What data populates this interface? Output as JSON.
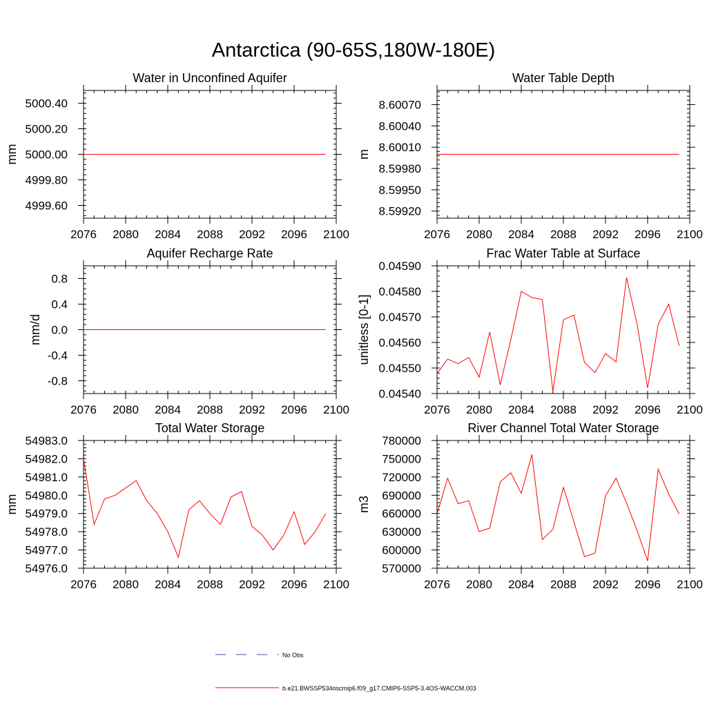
{
  "figure": {
    "title": "Antarctica (90-65S,180W-180E)",
    "legend": [
      {
        "label": "No Obs",
        "color": "#4a4aa8",
        "style": "dashed"
      },
      {
        "label": "b.e21.BWSSP534oscmip6.f09_g17.CMIP6-SSP5-3.4OS-WACCM.003",
        "color": "#ff0000",
        "style": "solid"
      }
    ]
  },
  "chart_data": [
    {
      "type": "line",
      "title": "Water in Unconfined Aquifer",
      "ylabel": "mm",
      "xlim": [
        2076,
        2100
      ],
      "ylim": [
        4999.5,
        5000.5
      ],
      "xticks": [
        "2076",
        "2080",
        "2084",
        "2088",
        "2092",
        "2096",
        "2100"
      ],
      "yticks": [
        "4999.60",
        "4999.80",
        "5000.00",
        "5000.20",
        "5000.40"
      ],
      "series": [
        {
          "color": "#ff0000",
          "x": [
            2076,
            2077,
            2078,
            2079,
            2080,
            2081,
            2082,
            2083,
            2084,
            2085,
            2086,
            2087,
            2088,
            2089,
            2090,
            2091,
            2092,
            2093,
            2094,
            2095,
            2096,
            2097,
            2098,
            2099
          ],
          "values": [
            5000,
            5000,
            5000,
            5000,
            5000,
            5000,
            5000,
            5000,
            5000,
            5000,
            5000,
            5000,
            5000,
            5000,
            5000,
            5000,
            5000,
            5000,
            5000,
            5000,
            5000,
            5000,
            5000,
            5000
          ]
        }
      ]
    },
    {
      "type": "line",
      "title": "Water Table Depth",
      "ylabel": "m",
      "xlim": [
        2076,
        2100
      ],
      "ylim": [
        8.5991,
        8.6009
      ],
      "xticks": [
        "2076",
        "2080",
        "2084",
        "2088",
        "2092",
        "2096",
        "2100"
      ],
      "yticks": [
        "8.59920",
        "8.59950",
        "8.59980",
        "8.60010",
        "8.60040",
        "8.60070"
      ],
      "series": [
        {
          "color": "#ff0000",
          "x": [
            2076,
            2077,
            2078,
            2079,
            2080,
            2081,
            2082,
            2083,
            2084,
            2085,
            2086,
            2087,
            2088,
            2089,
            2090,
            2091,
            2092,
            2093,
            2094,
            2095,
            2096,
            2097,
            2098,
            2099
          ],
          "values": [
            8.6,
            8.6,
            8.6,
            8.6,
            8.6,
            8.6,
            8.6,
            8.6,
            8.6,
            8.6,
            8.6,
            8.6,
            8.6,
            8.6,
            8.6,
            8.6,
            8.6,
            8.6,
            8.6,
            8.6,
            8.6,
            8.6,
            8.6,
            8.6
          ]
        }
      ]
    },
    {
      "type": "line",
      "title": "Aquifer Recharge Rate",
      "ylabel": "mm/d",
      "xlim": [
        2076,
        2100
      ],
      "ylim": [
        -1,
        1
      ],
      "xticks": [
        "2076",
        "2080",
        "2084",
        "2088",
        "2092",
        "2096",
        "2100"
      ],
      "yticks": [
        "-0.8",
        "-0.4",
        "0.0",
        "0.4",
        "0.8"
      ],
      "series": [
        {
          "color": "#ff0000",
          "x": [
            2076,
            2077,
            2078,
            2079,
            2080,
            2081,
            2082,
            2083,
            2084,
            2085,
            2086,
            2087,
            2088,
            2089,
            2090,
            2091,
            2092,
            2093,
            2094,
            2095,
            2096,
            2097,
            2098,
            2099
          ],
          "values": [
            0,
            0,
            0,
            0,
            0,
            0,
            0,
            0,
            0,
            0,
            0,
            0,
            0,
            0,
            0,
            0,
            0,
            0,
            0,
            0,
            0,
            0,
            0,
            0
          ]
        }
      ]
    },
    {
      "type": "line",
      "title": "Frac Water Table at Surface",
      "ylabel": "unitless [0-1]",
      "xlim": [
        2076,
        2100
      ],
      "ylim": [
        0.0454,
        0.0459
      ],
      "xticks": [
        "2076",
        "2080",
        "2084",
        "2088",
        "2092",
        "2096",
        "2100"
      ],
      "yticks": [
        "0.04540",
        "0.04550",
        "0.04560",
        "0.04570",
        "0.04580",
        "0.04590"
      ],
      "series": [
        {
          "color": "#ff0000",
          "x": [
            2076,
            2077,
            2078,
            2079,
            2080,
            2081,
            2082,
            2083,
            2084,
            2085,
            2086,
            2087,
            2088,
            2089,
            2090,
            2091,
            2092,
            2093,
            2094,
            2095,
            2096,
            2097,
            2098,
            2099
          ],
          "values": [
            0.045478,
            0.045535,
            0.045517,
            0.045541,
            0.045464,
            0.045641,
            0.045434,
            0.04561,
            0.0458,
            0.045776,
            0.045768,
            0.045409,
            0.045689,
            0.045707,
            0.045522,
            0.045482,
            0.045556,
            0.045524,
            0.045854,
            0.045671,
            0.045422,
            0.045671,
            0.04575,
            0.045587
          ]
        }
      ]
    },
    {
      "type": "line",
      "title": "Total Water Storage",
      "ylabel": "mm",
      "xlim": [
        2076,
        2100
      ],
      "ylim": [
        54976.0,
        54983.0
      ],
      "xticks": [
        "2076",
        "2080",
        "2084",
        "2088",
        "2092",
        "2096",
        "2100"
      ],
      "yticks": [
        "54976.0",
        "54977.0",
        "54978.0",
        "54979.0",
        "54980.0",
        "54981.0",
        "54982.0",
        "54983.0"
      ],
      "series": [
        {
          "color": "#ff0000",
          "x": [
            2076,
            2077,
            2078,
            2079,
            2080,
            2081,
            2082,
            2083,
            2084,
            2085,
            2086,
            2087,
            2088,
            2089,
            2090,
            2091,
            2092,
            2093,
            2094,
            2095,
            2096,
            2097,
            2098,
            2099
          ],
          "values": [
            54982.0,
            54978.4,
            54979.8,
            54980.0,
            54980.4,
            54980.8,
            54979.7,
            54979.0,
            54978.0,
            54976.6,
            54979.2,
            54979.7,
            54979.0,
            54978.4,
            54979.9,
            54980.2,
            54978.3,
            54977.8,
            54977.0,
            54977.8,
            54979.1,
            54977.3,
            54978.0,
            54979.0
          ]
        }
      ]
    },
    {
      "type": "line",
      "title": "River Channel Total Water Storage",
      "ylabel": "m3",
      "xlim": [
        2076,
        2100
      ],
      "ylim": [
        570000,
        780000
      ],
      "xticks": [
        "2076",
        "2080",
        "2084",
        "2088",
        "2092",
        "2096",
        "2100"
      ],
      "yticks": [
        "570000",
        "600000",
        "630000",
        "660000",
        "690000",
        "720000",
        "750000",
        "780000"
      ],
      "series": [
        {
          "color": "#ff0000",
          "x": [
            2076,
            2077,
            2078,
            2079,
            2080,
            2081,
            2082,
            2083,
            2084,
            2085,
            2086,
            2087,
            2088,
            2089,
            2090,
            2091,
            2092,
            2093,
            2094,
            2095,
            2096,
            2097,
            2098,
            2099
          ],
          "values": [
            659000,
            718000,
            676000,
            681000,
            630000,
            636000,
            712000,
            727000,
            693000,
            757000,
            617000,
            634000,
            703000,
            646000,
            589000,
            595000,
            689000,
            718000,
            677000,
            632000,
            582000,
            733000,
            692000,
            659000
          ]
        }
      ]
    }
  ]
}
